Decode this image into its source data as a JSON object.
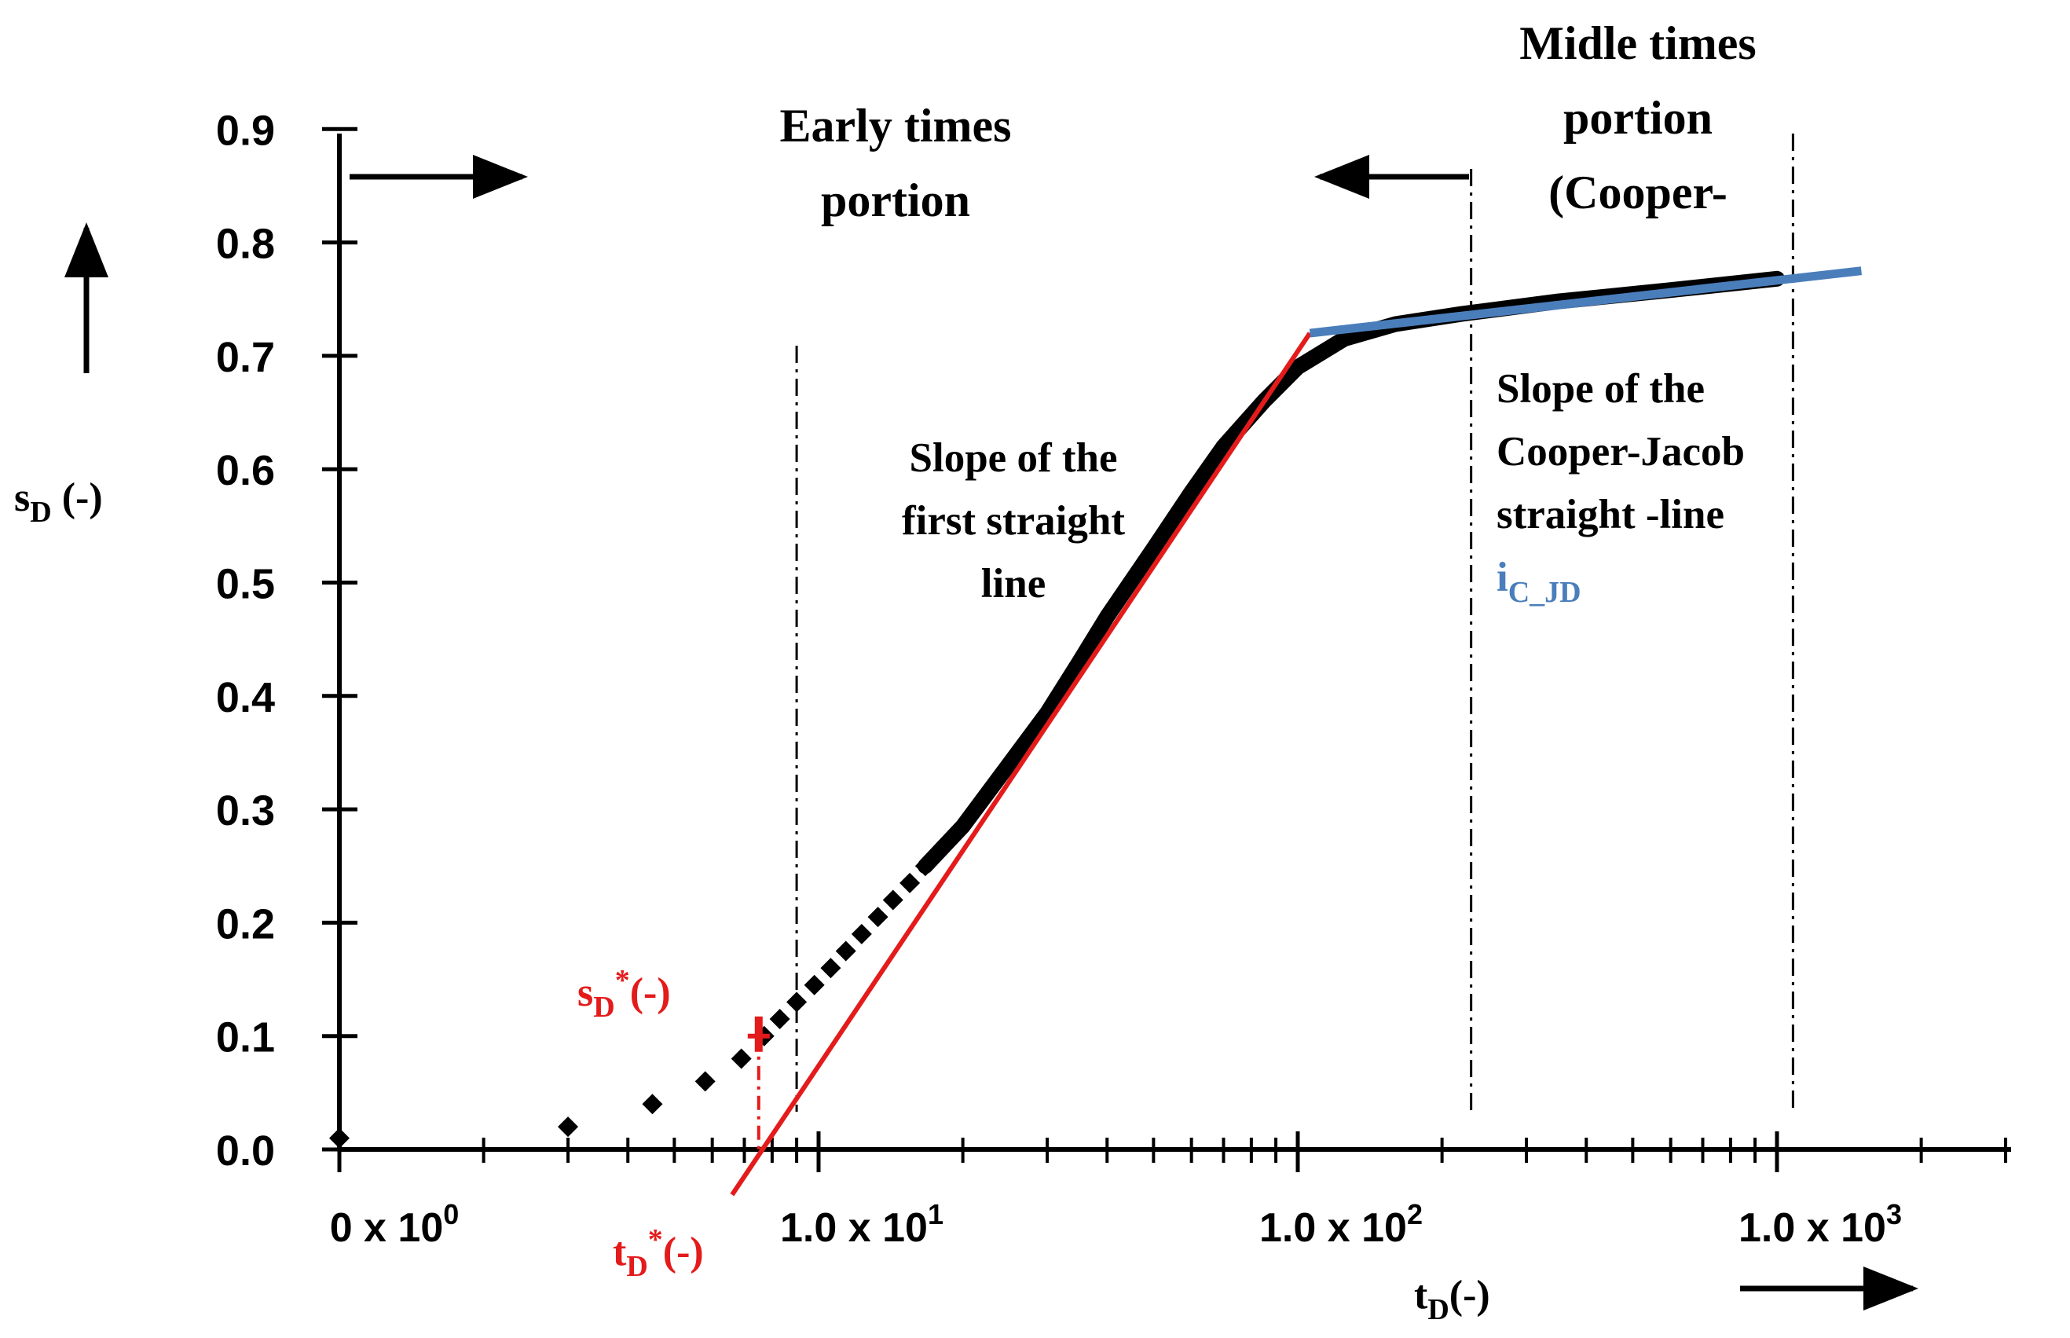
{
  "chart_data": {
    "type": "scatter",
    "x_scale": "log",
    "xlim_log10": [
      0,
      3.5
    ],
    "ylim": [
      0,
      0.9
    ],
    "y_ticks": [
      {
        "value": 0.0,
        "label": "0.0"
      },
      {
        "value": 0.1,
        "label": "0.1"
      },
      {
        "value": 0.2,
        "label": "0.2"
      },
      {
        "value": 0.3,
        "label": "0.3"
      },
      {
        "value": 0.4,
        "label": "0.4"
      },
      {
        "value": 0.5,
        "label": "0.5"
      },
      {
        "value": 0.6,
        "label": "0.6"
      },
      {
        "value": 0.7,
        "label": "0.7"
      },
      {
        "value": 0.8,
        "label": "0.8"
      },
      {
        "value": 0.9,
        "label": "0.9"
      }
    ],
    "x_tick_labels": [
      {
        "log10": 0,
        "base": "0 x 10",
        "exp": "0"
      },
      {
        "log10": 1,
        "base": "1.0 x 10",
        "exp": "1"
      },
      {
        "log10": 2,
        "base": "1.0 x 10",
        "exp": "2"
      },
      {
        "log10": 3,
        "base": "1.0 x 10",
        "exp": "3"
      }
    ],
    "xlabel": {
      "main": "t",
      "sub": "D",
      "tail": "(-)"
    },
    "ylabel": {
      "main": "s",
      "sub": "D",
      "tail": " (-)"
    },
    "early_points": [
      {
        "t": 1.0,
        "s": 0.01
      },
      {
        "t": 3.0,
        "s": 0.02
      },
      {
        "t": 4.5,
        "s": 0.04
      },
      {
        "t": 5.8,
        "s": 0.06
      },
      {
        "t": 6.9,
        "s": 0.08
      },
      {
        "t": 7.7,
        "s": 0.1
      },
      {
        "t": 8.3,
        "s": 0.115
      },
      {
        "t": 9.0,
        "s": 0.13
      },
      {
        "t": 9.8,
        "s": 0.145
      },
      {
        "t": 10.6,
        "s": 0.16
      },
      {
        "t": 11.4,
        "s": 0.175
      },
      {
        "t": 12.3,
        "s": 0.19
      },
      {
        "t": 13.3,
        "s": 0.205
      },
      {
        "t": 14.3,
        "s": 0.22
      },
      {
        "t": 15.5,
        "s": 0.235
      },
      {
        "t": 16.7,
        "s": 0.25
      }
    ],
    "dense_curve": [
      {
        "t": 16.7,
        "s": 0.25
      },
      {
        "t": 20,
        "s": 0.285
      },
      {
        "t": 25,
        "s": 0.34
      },
      {
        "t": 30,
        "s": 0.385
      },
      {
        "t": 35,
        "s": 0.43
      },
      {
        "t": 40,
        "s": 0.47
      },
      {
        "t": 50,
        "s": 0.53
      },
      {
        "t": 60,
        "s": 0.58
      },
      {
        "t": 70,
        "s": 0.62
      },
      {
        "t": 85,
        "s": 0.66
      },
      {
        "t": 100,
        "s": 0.69
      },
      {
        "t": 125,
        "s": 0.715
      },
      {
        "t": 160,
        "s": 0.728
      },
      {
        "t": 220,
        "s": 0.737
      },
      {
        "t": 350,
        "s": 0.748
      },
      {
        "t": 600,
        "s": 0.758
      },
      {
        "t": 1000,
        "s": 0.768
      }
    ],
    "first_line": {
      "start": {
        "t": 6.6,
        "s": -0.04
      },
      "end": {
        "t": 106,
        "s": 0.72
      }
    },
    "cooper_jacob_line": {
      "start": {
        "t": 106,
        "s": 0.72
      },
      "end": {
        "t": 1500,
        "s": 0.775
      }
    },
    "boundaries_t": [
      9.0,
      230,
      1080
    ],
    "t_star": 7.5,
    "s_star": 0.1,
    "colors": {
      "data": "#000000",
      "first_line": "#e41b1b",
      "cooper_jacob": "#4a7ebb",
      "annotation": "#e41b1b"
    }
  },
  "annotations": {
    "early": {
      "line1": "Early times",
      "line2": "portion"
    },
    "middle": {
      "line1": "Midle times",
      "line2": "portion",
      "line3": "(Cooper-"
    },
    "slope_first": {
      "line1": "Slope  of the",
      "line2": "first straight",
      "line3": "line"
    },
    "slope_cj": {
      "line1": "Slope of the",
      "line2": "Cooper-Jacob",
      "line3": "straight -line"
    },
    "i_cj": {
      "main": "i",
      "sub": "C_JD"
    },
    "s_star": {
      "main": "s",
      "sub": "D",
      "sup": "*",
      "tail": "(-)"
    },
    "t_star": {
      "main": "t",
      "sub": "D",
      "sup": "*",
      "tail": "(-)"
    }
  }
}
